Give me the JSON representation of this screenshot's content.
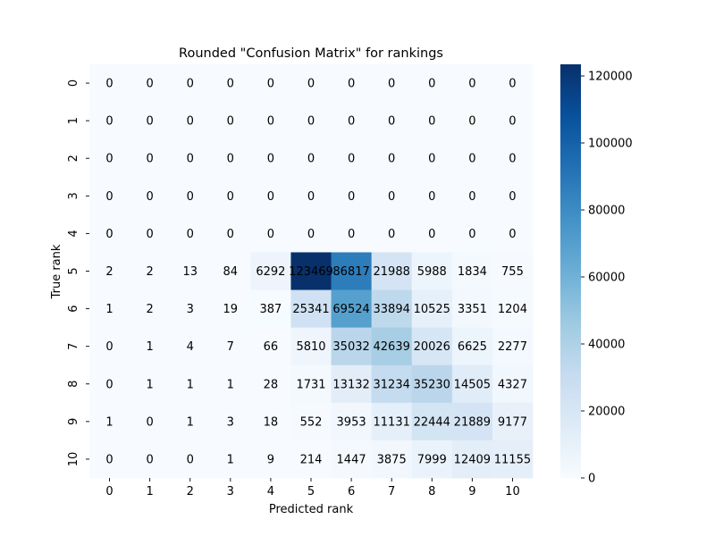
{
  "chart_data": {
    "type": "heatmap",
    "title": "Rounded \"Confusion Matrix\" for rankings",
    "xlabel": "Predicted rank",
    "ylabel": "True rank",
    "x_categories": [
      "0",
      "1",
      "2",
      "3",
      "4",
      "5",
      "6",
      "7",
      "8",
      "9",
      "10"
    ],
    "y_categories": [
      "0",
      "1",
      "2",
      "3",
      "4",
      "5",
      "6",
      "7",
      "8",
      "9",
      "10"
    ],
    "values": [
      [
        0,
        0,
        0,
        0,
        0,
        0,
        0,
        0,
        0,
        0,
        0
      ],
      [
        0,
        0,
        0,
        0,
        0,
        0,
        0,
        0,
        0,
        0,
        0
      ],
      [
        0,
        0,
        0,
        0,
        0,
        0,
        0,
        0,
        0,
        0,
        0
      ],
      [
        0,
        0,
        0,
        0,
        0,
        0,
        0,
        0,
        0,
        0,
        0
      ],
      [
        0,
        0,
        0,
        0,
        0,
        0,
        0,
        0,
        0,
        0,
        0
      ],
      [
        2,
        2,
        13,
        84,
        6292,
        123469,
        86817,
        21988,
        5988,
        1834,
        755
      ],
      [
        1,
        2,
        3,
        19,
        387,
        25341,
        69524,
        33894,
        10525,
        3351,
        1204
      ],
      [
        0,
        1,
        4,
        7,
        66,
        5810,
        35032,
        42639,
        20026,
        6625,
        2277
      ],
      [
        0,
        1,
        1,
        1,
        28,
        1731,
        13132,
        31234,
        35230,
        14505,
        4327
      ],
      [
        1,
        0,
        1,
        3,
        18,
        552,
        3953,
        11131,
        22444,
        21889,
        9177
      ],
      [
        0,
        0,
        0,
        1,
        9,
        214,
        1447,
        3875,
        7999,
        12409,
        11155
      ]
    ],
    "colorbar": {
      "colormap": "Blues",
      "range": [
        0,
        123469
      ],
      "ticks": [
        0,
        20000,
        40000,
        60000,
        80000,
        100000,
        120000
      ]
    }
  }
}
